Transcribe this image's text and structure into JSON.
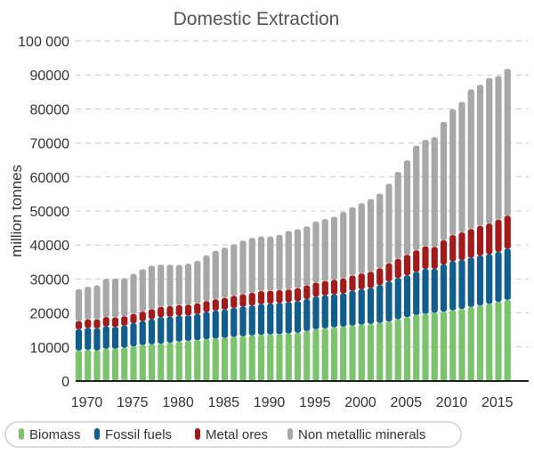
{
  "chart_data": {
    "type": "bar",
    "stacked": true,
    "title": "Domestic Extraction",
    "xlabel": "",
    "ylabel": "million tonnes",
    "ylim": [
      0,
      100000
    ],
    "yticks": [
      0,
      10000,
      20000,
      30000,
      40000,
      50000,
      60000,
      70000,
      80000,
      90000,
      100000
    ],
    "ytick_labels": [
      "0",
      "10000",
      "20000",
      "30000",
      "40000",
      "50000",
      "60000",
      "70000",
      "80000",
      "90000",
      "100 000"
    ],
    "xtick_labels": [
      "1970",
      "1975",
      "1980",
      "1985",
      "1990",
      "1995",
      "2000",
      "2005",
      "2010",
      "2015"
    ],
    "grid": "horizontal dashed",
    "legend_position": "bottom",
    "categories": [
      1970,
      1971,
      1972,
      1973,
      1974,
      1975,
      1976,
      1977,
      1978,
      1979,
      1980,
      1981,
      1982,
      1983,
      1984,
      1985,
      1986,
      1987,
      1988,
      1989,
      1990,
      1991,
      1992,
      1993,
      1994,
      1995,
      1996,
      1997,
      1998,
      1999,
      2000,
      2001,
      2002,
      2003,
      2004,
      2005,
      2006,
      2007,
      2008,
      2009,
      2010,
      2011,
      2012,
      2013,
      2014,
      2015,
      2016,
      2017
    ],
    "series": [
      {
        "name": "Biomass",
        "color": "#7cc36d",
        "values": [
          9000,
          9200,
          9000,
          9500,
          9500,
          9800,
          10200,
          10600,
          10800,
          11000,
          11300,
          11600,
          11800,
          12000,
          12300,
          12500,
          12700,
          13000,
          13200,
          13400,
          13600,
          13700,
          13800,
          14000,
          14200,
          14700,
          15200,
          15500,
          15800,
          16000,
          16300,
          16600,
          16800,
          17100,
          17500,
          18200,
          18800,
          19400,
          19800,
          20100,
          20400,
          20800,
          21200,
          21800,
          22200,
          22700,
          23300,
          23900
        ]
      },
      {
        "name": "Fossil fuels",
        "color": "#0f5e8e",
        "values": [
          6200,
          6400,
          6500,
          6600,
          6400,
          6500,
          6800,
          7000,
          7400,
          7800,
          7600,
          7600,
          7500,
          7700,
          8000,
          8200,
          8300,
          8500,
          8700,
          8800,
          9000,
          9100,
          9200,
          9200,
          9300,
          9400,
          9600,
          9700,
          9700,
          9800,
          10200,
          10400,
          10600,
          11100,
          11800,
          12100,
          12300,
          12700,
          13200,
          12900,
          13900,
          14400,
          14400,
          14500,
          14700,
          14600,
          14700,
          15000
        ]
      },
      {
        "name": "Metal ores",
        "color": "#a31a1a",
        "values": [
          2400,
          2500,
          2600,
          2700,
          2800,
          2700,
          2700,
          2800,
          2900,
          3000,
          3100,
          3100,
          3100,
          3100,
          3200,
          3300,
          3400,
          3500,
          3600,
          3700,
          3800,
          3700,
          3700,
          3700,
          3800,
          4000,
          4100,
          4200,
          4200,
          4300,
          4500,
          4600,
          4700,
          4900,
          5300,
          5600,
          6000,
          6300,
          6600,
          6400,
          7100,
          7700,
          8100,
          8400,
          8700,
          9000,
          9400,
          9700
        ]
      },
      {
        "name": "Non metallic minerals",
        "color": "#a7a7a7",
        "values": [
          9400,
          9600,
          10000,
          11200,
          11400,
          11200,
          11800,
          12500,
          12800,
          12400,
          12200,
          11800,
          12100,
          12500,
          13400,
          14300,
          14800,
          15200,
          15800,
          16200,
          16100,
          16000,
          16300,
          17200,
          17300,
          17400,
          18000,
          18200,
          18600,
          19600,
          20100,
          20700,
          21400,
          22000,
          23400,
          25600,
          27800,
          30800,
          31300,
          32300,
          34800,
          37000,
          38400,
          41100,
          41500,
          42800,
          42300,
          43200
        ]
      }
    ]
  }
}
